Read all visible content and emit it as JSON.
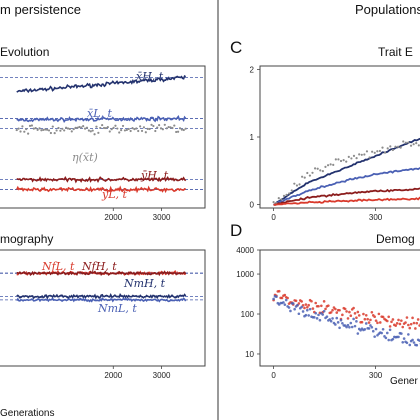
{
  "headers": {
    "left": "m persistence",
    "right": "Populations"
  },
  "panel_labels": {
    "c": "C",
    "d": "D"
  },
  "panel_titles": {
    "evolution": "Evolution",
    "demography": "mography",
    "trait": "Trait E",
    "demog_right": "Demog"
  },
  "axis_labels": {
    "left_x": "Generations",
    "right_x": "Gener"
  },
  "colors": {
    "dark_blue": "#23326e",
    "blue": "#4a60b4",
    "gray": "#8c8c8c",
    "dark_red": "#8b1c1c",
    "red": "#d93a2c",
    "dash": "#4458a8",
    "frame": "#444444"
  },
  "annotations": {
    "x_H": "x̄H, t",
    "x_L": "x̄L, t",
    "eta": "η(x̄t)",
    "y_H": "ȳH, t",
    "y_L": "ȳL, t",
    "N_fL": "NfL, t",
    "N_fH": "NfH, t",
    "N_mH": "NmH, t",
    "N_mL": "NmL, t"
  },
  "chart_data": [
    {
      "type": "line",
      "title": "Evolution",
      "x_ticks": [
        2000,
        3000
      ],
      "xlim": [
        -450,
        3900
      ],
      "series": [
        {
          "name": "x̄H, t",
          "x": [
            0,
            3500
          ],
          "y": [
            0.82,
            0.92
          ]
        },
        {
          "name": "x̄L, t",
          "x": [
            0,
            3500
          ],
          "y": [
            0.62,
            0.63
          ]
        },
        {
          "name": "η(x̄t)",
          "x": [
            0,
            3500
          ],
          "y": [
            0.55,
            0.56
          ]
        },
        {
          "name": "ȳH, t",
          "x": [
            0,
            3500
          ],
          "y": [
            0.2,
            0.2
          ]
        },
        {
          "name": "ȳL, t",
          "x": [
            0,
            3500
          ],
          "y": [
            0.13,
            0.13
          ]
        }
      ]
    },
    {
      "type": "line",
      "title": "mography",
      "xlabel": "Generations",
      "x_ticks": [
        2000,
        3000
      ],
      "xlim": [
        -450,
        3900
      ],
      "series": [
        {
          "name": "NfL, t",
          "x": [
            0,
            3500
          ],
          "y": [
            0.8,
            0.8
          ]
        },
        {
          "name": "NfH, t",
          "x": [
            0,
            3500
          ],
          "y": [
            0.8,
            0.8
          ]
        },
        {
          "name": "NmH, t",
          "x": [
            0,
            3500
          ],
          "y": [
            0.6,
            0.6
          ]
        },
        {
          "name": "NmL, t",
          "x": [
            0,
            3500
          ],
          "y": [
            0.57,
            0.57
          ]
        }
      ]
    },
    {
      "type": "scatter",
      "title": "Trait E",
      "y_ticks": [
        0,
        1,
        2
      ],
      "x_ticks": [
        0,
        300
      ],
      "ylim": [
        -0.05,
        2.05
      ],
      "xlim": [
        -40,
        460
      ],
      "series": [
        {
          "x": [
            0,
            100,
            200,
            300,
            400,
            450
          ],
          "y": [
            0,
            0.32,
            0.52,
            0.72,
            0.92,
            1.0
          ]
        },
        {
          "x": [
            0,
            100,
            200,
            300,
            400,
            450
          ],
          "y": [
            0,
            0.2,
            0.34,
            0.45,
            0.52,
            0.55
          ]
        },
        {
          "x": [
            0,
            100,
            200,
            300,
            400,
            450
          ],
          "y": [
            0,
            0.44,
            0.65,
            0.8,
            0.9,
            0.95
          ]
        },
        {
          "x": [
            0,
            100,
            200,
            300,
            400,
            450
          ],
          "y": [
            0,
            0.1,
            0.16,
            0.2,
            0.22,
            0.25
          ]
        },
        {
          "x": [
            0,
            100,
            200,
            300,
            400,
            450
          ],
          "y": [
            0,
            0.03,
            0.05,
            0.07,
            0.08,
            0.1
          ]
        }
      ]
    },
    {
      "type": "scatter",
      "title": "Demog",
      "xlabel": "Gener",
      "y_scale": "log",
      "y_ticks": [
        10,
        100,
        1000,
        4000
      ],
      "x_ticks": [
        0,
        300
      ],
      "ylim": [
        5,
        4000
      ],
      "xlim": [
        -40,
        460
      ],
      "series": [
        {
          "x": [
            0,
            100,
            200,
            300,
            400,
            450
          ],
          "y": [
            300,
            170,
            120,
            75,
            60,
            45
          ]
        },
        {
          "x": [
            0,
            100,
            200,
            300,
            400,
            450
          ],
          "y": [
            220,
            110,
            60,
            35,
            22,
            18
          ]
        }
      ]
    }
  ]
}
